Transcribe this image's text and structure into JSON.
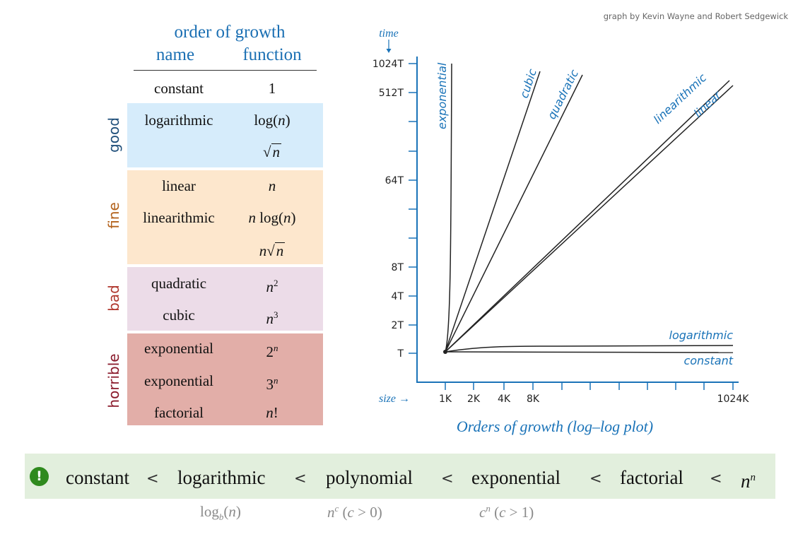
{
  "credit": "graph by Kevin Wayne and Robert Sedgewick",
  "table": {
    "title": "order of growth",
    "col_name": "name",
    "col_function": "function",
    "top_row": {
      "name": "constant",
      "fn": "1"
    },
    "groups": {
      "good": {
        "label": "good",
        "color": "#1f4f7a",
        "bg": "#d6ecfb"
      },
      "fine": {
        "label": "fine",
        "color": "#b3621c",
        "bg": "#fde7cd"
      },
      "bad": {
        "label": "bad",
        "color": "#b0372e",
        "bg": "#ecdce8"
      },
      "horrible": {
        "label": "horrible",
        "color": "#8a1a2b",
        "bg": "#e2aea8"
      }
    },
    "rows": {
      "logarithmic": {
        "name": "logarithmic",
        "fn_pre": "log(",
        "fn_var": "n",
        "fn_post": ")"
      },
      "sqrt": {
        "var": "n"
      },
      "linear": {
        "name": "linear",
        "fn_var": "n"
      },
      "linearithmic": {
        "name": "linearithmic",
        "fn_var": "n",
        "fn_mid": " log(",
        "fn_var2": "n",
        "fn_post": ")"
      },
      "n_sqrt_n": {
        "var": "n",
        "var2": "n"
      },
      "quadratic": {
        "name": "quadratic",
        "base": "n",
        "exp": "2"
      },
      "cubic": {
        "name": "cubic",
        "base": "n",
        "exp": "3"
      },
      "exp2": {
        "name": "exponential",
        "base": "2",
        "exp": "n"
      },
      "exp3": {
        "name": "exponential",
        "base": "3",
        "exp": "n"
      },
      "factorial": {
        "name": "factorial",
        "var": "n",
        "post": "!"
      }
    }
  },
  "chart_data": {
    "type": "line",
    "title": "Orders of growth (log–log plot)",
    "xlabel": "size →",
    "ylabel": "time",
    "x_log_scale": true,
    "y_log_scale": true,
    "x_ticks": [
      "1K",
      "2K",
      "4K",
      "8K",
      "1024K"
    ],
    "y_ticks": [
      "T",
      "2T",
      "4T",
      "8T",
      "64T",
      "512T",
      "1024T"
    ],
    "series": [
      {
        "name": "exponential"
      },
      {
        "name": "cubic"
      },
      {
        "name": "quadratic"
      },
      {
        "name": "linearithmic"
      },
      {
        "name": "linear"
      },
      {
        "name": "logarithmic"
      },
      {
        "name": "constant"
      }
    ],
    "ink_color": "#222222",
    "label_color": "#1a73b8"
  },
  "ordering": {
    "items": [
      "constant",
      "logarithmic",
      "polynomial",
      "exponential",
      "factorial"
    ],
    "last_base": "n",
    "last_exp": "n",
    "sep": "<",
    "accent": "#2f8a1e",
    "bg": "#e2efdd",
    "notes": {
      "log": {
        "pre": "log",
        "sub": "b",
        "mid": "(",
        "var": "n",
        "post": ")"
      },
      "poly": {
        "base": "n",
        "exp": "c",
        "cond_pre": " (",
        "cond_var": "c",
        "cond_post": " > 0)"
      },
      "expo": {
        "base": "c",
        "exp": "n",
        "cond_pre": " (",
        "cond_var": "c",
        "cond_post": " > 1)"
      }
    }
  }
}
